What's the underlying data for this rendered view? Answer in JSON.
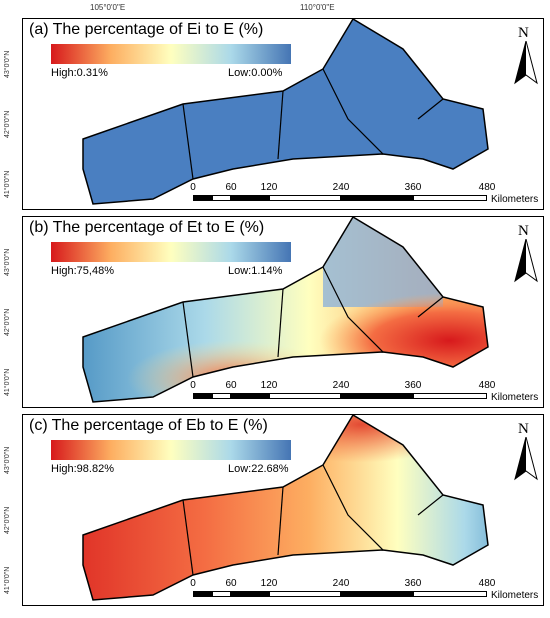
{
  "top_longitude_labels": [
    "105°0'0\"E",
    "110°0'0\"E"
  ],
  "latitude_labels": [
    "43°0'0\"N",
    "42°0'0\"N",
    "41°0'0\"N"
  ],
  "north_letter": "N",
  "scale": {
    "labels": [
      "0",
      "60",
      "120",
      "240",
      "360",
      "480"
    ],
    "unit": "Kilometers"
  },
  "panels": [
    {
      "letter": "(a)",
      "title": "The percentage of Ei to E (%)",
      "high_label": "High:0.31%",
      "low_label": "Low:0.00%",
      "high_value_percent": 0.31,
      "low_value_percent": 0.0,
      "colors": {
        "high": "#d7191c",
        "mid": "#ffffbf",
        "low": "#2c7bb6"
      }
    },
    {
      "letter": "(b)",
      "title": "The percentage of Et to E (%)",
      "high_label": "High:75,48%",
      "low_label": "Low:1.14%",
      "high_value_percent": 75.48,
      "low_value_percent": 1.14,
      "colors": {
        "high": "#d7191c",
        "mid": "#ffffbf",
        "low": "#2c7bb6"
      }
    },
    {
      "letter": "(c)",
      "title": "The percentage of Eb to E (%)",
      "high_label": "High:98.82%",
      "low_label": "Low:22.68%",
      "high_value_percent": 98.82,
      "low_value_percent": 22.68,
      "colors": {
        "high": "#d7191c",
        "mid": "#ffffbf",
        "low": "#2c7bb6"
      }
    }
  ]
}
